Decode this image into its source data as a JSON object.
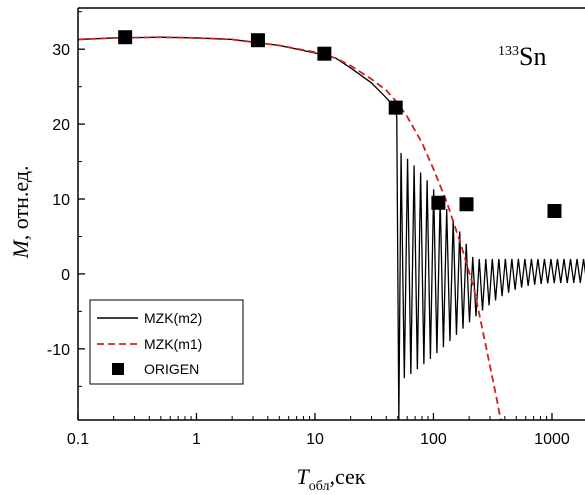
{
  "chart_data": {
    "type": "line",
    "x_scale": "log",
    "xlim": [
      0.1,
      1900
    ],
    "ylim": [
      -19.5,
      35.5
    ],
    "x_ticks": [
      {
        "value": 0.1,
        "label": "0.1"
      },
      {
        "value": 1,
        "label": "1"
      },
      {
        "value": 10,
        "label": "10"
      },
      {
        "value": 100,
        "label": "100"
      },
      {
        "value": 1000,
        "label": "1000"
      }
    ],
    "y_ticks": [
      {
        "value": 30,
        "label": "30"
      },
      {
        "value": 20,
        "label": "20"
      },
      {
        "value": 10,
        "label": "10"
      },
      {
        "value": 0,
        "label": "0"
      },
      {
        "value": -10,
        "label": "-10"
      }
    ],
    "xlabel": {
      "main": "T",
      "sub": "обл",
      "rest": ",сек"
    },
    "ylabel": {
      "main": "M",
      "rest": ", отн.ед."
    },
    "annotation": {
      "sup": "133",
      "main": "Sn"
    },
    "legend_position": "bottom-left",
    "series": [
      {
        "name": "MZK(m2)",
        "style": "solid",
        "color": "#000000",
        "envelope": {
          "t_start": 48,
          "t_end": 1900,
          "t_decay": 130,
          "period_log10": 0.055,
          "t_osc_start": 50
        },
        "points": [
          [
            0.1,
            31.3
          ],
          [
            0.2,
            31.5
          ],
          [
            0.5,
            31.6
          ],
          [
            1,
            31.5
          ],
          [
            2,
            31.3
          ],
          [
            5,
            30.5
          ],
          [
            10,
            29.5
          ],
          [
            15,
            28.8
          ],
          [
            20,
            27.5
          ],
          [
            30,
            25.5
          ],
          [
            40,
            23.5
          ],
          [
            47,
            22.3
          ],
          [
            49,
            21
          ]
        ]
      },
      {
        "name": "MZK(m1)",
        "style": "dashed",
        "color": "#cc2222",
        "points": [
          [
            0.1,
            31.3
          ],
          [
            0.2,
            31.5
          ],
          [
            0.5,
            31.6
          ],
          [
            1,
            31.5
          ],
          [
            2,
            31.3
          ],
          [
            5,
            30.5
          ],
          [
            10,
            29.6
          ],
          [
            15,
            28.8
          ],
          [
            20,
            27.8
          ],
          [
            30,
            26
          ],
          [
            40,
            24.5
          ],
          [
            50,
            22.8
          ],
          [
            60,
            21
          ],
          [
            80,
            17.5
          ],
          [
            100,
            14
          ],
          [
            130,
            9.5
          ],
          [
            170,
            4
          ],
          [
            220,
            -2
          ],
          [
            280,
            -10
          ],
          [
            340,
            -16.5
          ],
          [
            370,
            -19.5
          ]
        ]
      },
      {
        "name": "ORIGEN",
        "style": "marker-square",
        "color": "#000000",
        "points": [
          [
            0.25,
            31.6
          ],
          [
            3.3,
            31.2
          ],
          [
            12,
            29.4
          ],
          [
            48,
            22.2
          ],
          [
            110,
            9.5
          ],
          [
            190,
            9.3
          ],
          [
            1050,
            8.4
          ]
        ]
      }
    ]
  }
}
